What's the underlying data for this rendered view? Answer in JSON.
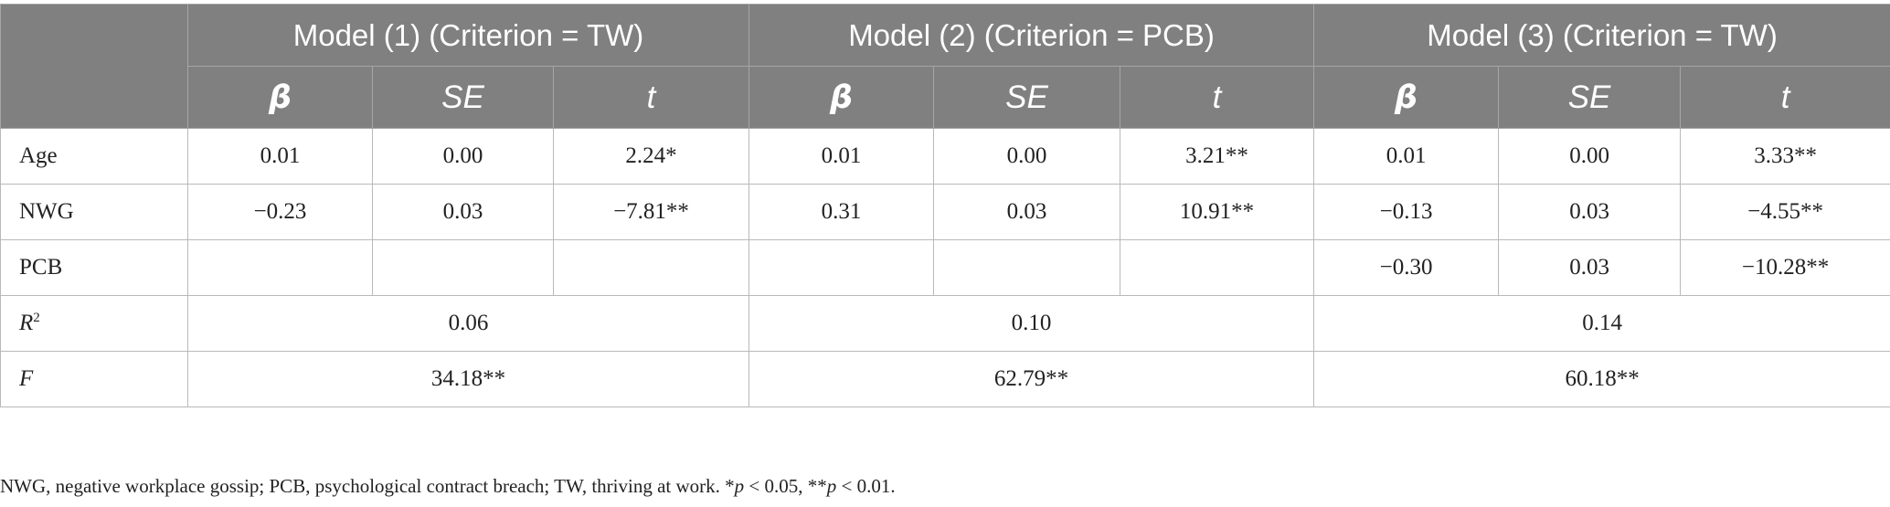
{
  "table": {
    "models": [
      "Model (1) (Criterion = TW)",
      "Model (2) (Criterion = PCB)",
      "Model (3) (Criterion = TW)"
    ],
    "stat_headers": [
      "β",
      "SE",
      "t"
    ],
    "rows": [
      {
        "label": "Age",
        "cells": [
          "0.01",
          "0.00",
          "2.24*",
          "0.01",
          "0.00",
          "3.21**",
          "0.01",
          "0.00",
          "3.33**"
        ]
      },
      {
        "label": "NWG",
        "cells": [
          "−0.23",
          "0.03",
          "−7.81**",
          "0.31",
          "0.03",
          "10.91**",
          "−0.13",
          "0.03",
          "−4.55**"
        ]
      },
      {
        "label": "PCB",
        "cells": [
          "",
          "",
          "",
          "",
          "",
          "",
          "−0.30",
          "0.03",
          "−10.28**"
        ]
      }
    ],
    "r2": {
      "label": "R",
      "label_sup": "2",
      "values": [
        "0.06",
        "0.10",
        "0.14"
      ]
    },
    "f": {
      "label": "F",
      "values": [
        "34.18**",
        "62.79**",
        "60.18**"
      ]
    }
  },
  "note": {
    "text": "NWG, negative workplace gossip; PCB, psychological contract breach; TW, thriving at work. *",
    "p1_var": "p",
    "p1_rest": " < 0.05, **",
    "p2_var": "p",
    "p2_rest": " < 0.01."
  }
}
